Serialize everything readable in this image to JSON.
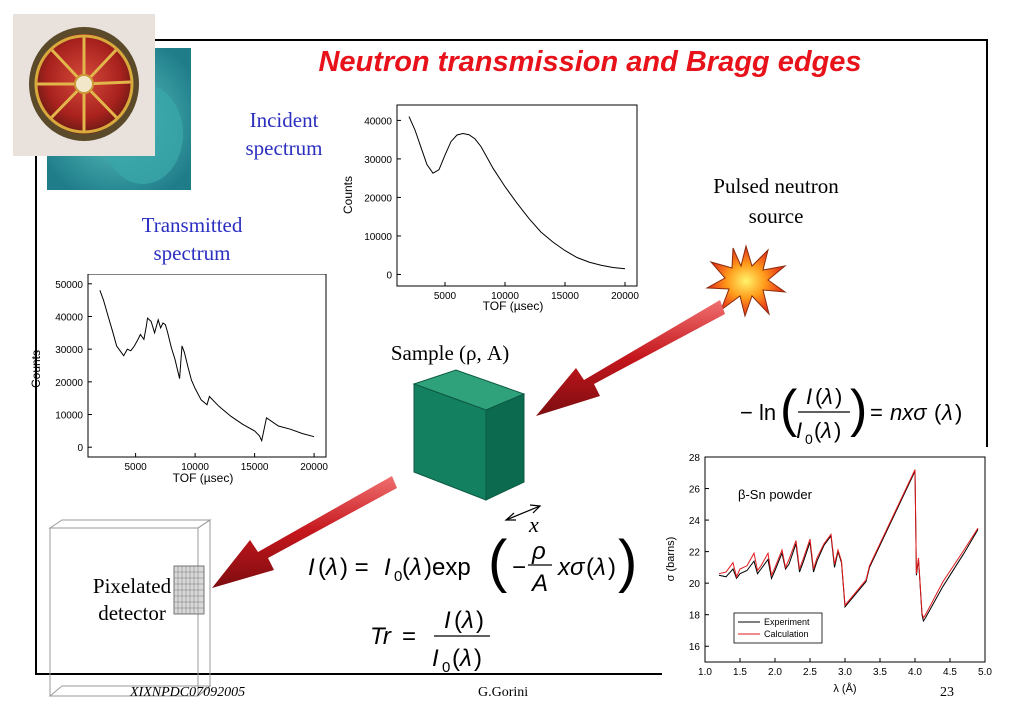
{
  "slide": {
    "title": "Neutron transmission and Bragg edges",
    "labels": {
      "incident_spectrum": "Incident spectrum",
      "transmitted_spectrum": "Transmitted spectrum",
      "pulsed_source": "Pulsed neutron source",
      "sample": "Sample (ρ, A)",
      "pixelated_detector": "Pixelated detector",
      "x_axis_label": "x"
    },
    "equations": {
      "attenuation": "I(λ) = I0(λ) exp(− ρ/A x σ(λ))",
      "transmission": "Tr = I(λ) / I0(λ)",
      "cross_section": "−ln( I(λ) / I0(λ) ) = nxσ(λ)"
    },
    "footer": {
      "left": "XIXNPDC07092005",
      "center": "G.Gorini",
      "page": "23"
    },
    "colors": {
      "title": "#e8121b",
      "labels": "#2b2fc0",
      "arrow": "#c4161c",
      "sample": "#138060"
    }
  },
  "chart_data": [
    {
      "type": "line",
      "name": "incident-spectrum-chart",
      "xlabel": "TOF (µsec)",
      "ylabel": "Counts",
      "xlim": [
        1000,
        21000
      ],
      "ylim": [
        -3000,
        44000
      ],
      "xticks": [
        5000,
        10000,
        15000,
        20000
      ],
      "yticks": [
        0,
        10000,
        20000,
        30000,
        40000
      ],
      "x": [
        2000,
        2500,
        3000,
        3500,
        4000,
        4500,
        5000,
        5500,
        6000,
        6500,
        7000,
        7500,
        8000,
        8500,
        9000,
        10000,
        11000,
        12000,
        13000,
        14000,
        15000,
        16000,
        17000,
        18000,
        19000,
        20000
      ],
      "y": [
        41000,
        37500,
        33000,
        28500,
        26300,
        27200,
        31000,
        34500,
        36200,
        36600,
        36300,
        35200,
        33200,
        30400,
        27600,
        22800,
        18500,
        14500,
        11000,
        8400,
        6200,
        4400,
        3200,
        2400,
        1800,
        1500
      ]
    },
    {
      "type": "line",
      "name": "transmitted-spectrum-chart",
      "xlabel": "TOF (µsec)",
      "ylabel": "Counts",
      "xlim": [
        1000,
        21000
      ],
      "ylim": [
        -3000,
        53000
      ],
      "xticks": [
        5000,
        10000,
        15000,
        20000
      ],
      "yticks": [
        0,
        10000,
        20000,
        30000,
        40000,
        50000
      ],
      "x": [
        2000,
        2300,
        2700,
        3100,
        3400,
        3700,
        4000,
        4300,
        4600,
        4900,
        5200,
        5400,
        5700,
        5900,
        6000,
        6300,
        6600,
        6900,
        7100,
        7300,
        7500,
        7700,
        8000,
        8300,
        8700,
        8900,
        9100,
        9400,
        9700,
        10000,
        10500,
        11000,
        11200,
        12000,
        13000,
        14000,
        15000,
        15400,
        15600,
        16000,
        17000,
        18000,
        19000,
        20000
      ],
      "y": [
        48000,
        45000,
        40000,
        35000,
        31000,
        29500,
        28000,
        30000,
        29500,
        31000,
        33000,
        34500,
        33000,
        37000,
        39500,
        38500,
        35000,
        39000,
        36500,
        38000,
        37500,
        35000,
        30500,
        27000,
        21000,
        31000,
        29000,
        24500,
        20500,
        18000,
        14500,
        13000,
        15500,
        12500,
        9500,
        7000,
        5000,
        3500,
        2000,
        9000,
        6500,
        5500,
        4200,
        3200
      ]
    },
    {
      "type": "line",
      "name": "cross-section-chart",
      "title": "β-Sn powder",
      "xlabel": "λ (Å)",
      "ylabel": "σ (barns)",
      "xlim": [
        1.0,
        5.0
      ],
      "ylim": [
        15,
        28
      ],
      "xticks": [
        1.0,
        1.5,
        2.0,
        2.5,
        3.0,
        3.5,
        4.0,
        4.5,
        5.0
      ],
      "yticks": [
        16,
        18,
        20,
        22,
        24,
        26,
        28
      ],
      "legend": "bottom-left",
      "series": [
        {
          "name": "Experiment",
          "color": "#000000",
          "x": [
            1.2,
            1.3,
            1.4,
            1.45,
            1.5,
            1.6,
            1.7,
            1.75,
            1.8,
            1.9,
            1.95,
            2.0,
            2.1,
            2.15,
            2.2,
            2.3,
            2.35,
            2.4,
            2.5,
            2.55,
            2.6,
            2.7,
            2.8,
            2.85,
            2.9,
            2.95,
            3.0,
            3.3,
            3.35,
            4.0,
            4.02,
            4.05,
            4.1,
            4.12,
            4.15,
            4.4,
            4.7,
            4.9
          ],
          "y": [
            20.5,
            20.4,
            20.9,
            20.3,
            20.6,
            20.8,
            21.4,
            20.6,
            20.9,
            21.5,
            20.3,
            20.8,
            21.9,
            20.9,
            21.2,
            22.5,
            20.7,
            21.3,
            22.6,
            20.7,
            21.4,
            22.4,
            23.0,
            21.0,
            22.0,
            21.3,
            18.5,
            20.1,
            21.0,
            27.1,
            20.5,
            21.5,
            18.0,
            17.6,
            17.8,
            19.8,
            21.9,
            23.4
          ]
        },
        {
          "name": "Calculation",
          "color": "#e3191b",
          "x": [
            1.2,
            1.3,
            1.4,
            1.45,
            1.5,
            1.6,
            1.7,
            1.75,
            1.8,
            1.9,
            1.95,
            2.0,
            2.1,
            2.15,
            2.2,
            2.3,
            2.35,
            2.4,
            2.5,
            2.55,
            2.6,
            2.7,
            2.8,
            2.85,
            2.9,
            2.95,
            3.0,
            3.3,
            3.35,
            4.0,
            4.02,
            4.05,
            4.1,
            4.12,
            4.15,
            4.4,
            4.7,
            4.9
          ],
          "y": [
            20.6,
            20.7,
            21.3,
            20.4,
            20.9,
            21.1,
            21.9,
            20.8,
            21.1,
            21.9,
            20.5,
            21.0,
            22.1,
            21.0,
            21.5,
            22.7,
            20.9,
            21.5,
            22.8,
            20.9,
            21.6,
            22.5,
            23.1,
            21.2,
            22.1,
            21.4,
            18.6,
            20.2,
            21.1,
            27.2,
            20.6,
            21.6,
            18.1,
            17.8,
            18.0,
            20.1,
            22.1,
            23.5
          ]
        }
      ]
    }
  ]
}
